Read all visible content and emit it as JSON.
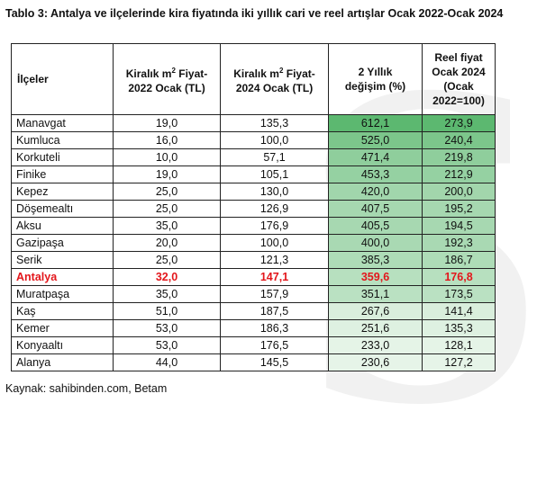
{
  "title": "Tablo 3: Antalya ve ilçelerinde kira fiyatında iki yıllık cari ve reel artışlar Ocak 2022-Ocak 2024",
  "headers": [
    "İlçeler",
    "Kiralık m² Fiyat-2022 Ocak (TL)",
    "Kiralık m² Fiyat-2024 Ocak (TL)",
    "2 Yıllık değişim (%)",
    "Reel fiyat Ocak 2024 (Ocak 2022=100)"
  ],
  "rows": [
    {
      "district": "Manavgat",
      "p2022": "19,0",
      "p2024": "135,3",
      "change": "612,1",
      "real": "273,9"
    },
    {
      "district": "Kumluca",
      "p2022": "16,0",
      "p2024": "100,0",
      "change": "525,0",
      "real": "240,4"
    },
    {
      "district": "Korkuteli",
      "p2022": "10,0",
      "p2024": "57,1",
      "change": "471,4",
      "real": "219,8"
    },
    {
      "district": "Finike",
      "p2022": "19,0",
      "p2024": "105,1",
      "change": "453,3",
      "real": "212,9"
    },
    {
      "district": "Kepez",
      "p2022": "25,0",
      "p2024": "130,0",
      "change": "420,0",
      "real": "200,0"
    },
    {
      "district": "Döşemealtı",
      "p2022": "25,0",
      "p2024": "126,9",
      "change": "407,5",
      "real": "195,2"
    },
    {
      "district": "Aksu",
      "p2022": "35,0",
      "p2024": "176,9",
      "change": "405,5",
      "real": "194,5"
    },
    {
      "district": "Gazipaşa",
      "p2022": "20,0",
      "p2024": "100,0",
      "change": "400,0",
      "real": "192,3"
    },
    {
      "district": "Serik",
      "p2022": "25,0",
      "p2024": "121,3",
      "change": "385,3",
      "real": "186,7"
    },
    {
      "district": "Antalya",
      "p2022": "32,0",
      "p2024": "147,1",
      "change": "359,6",
      "real": "176,8",
      "highlight": true
    },
    {
      "district": "Muratpaşa",
      "p2022": "35,0",
      "p2024": "157,9",
      "change": "351,1",
      "real": "173,5"
    },
    {
      "district": "Kaş",
      "p2022": "51,0",
      "p2024": "187,5",
      "change": "267,6",
      "real": "141,4"
    },
    {
      "district": "Kemer",
      "p2022": "53,0",
      "p2024": "186,3",
      "change": "251,6",
      "real": "135,3"
    },
    {
      "district": "Konyaaltı",
      "p2022": "53,0",
      "p2024": "176,5",
      "change": "233,0",
      "real": "128,1"
    },
    {
      "district": "Alanya",
      "p2022": "44,0",
      "p2024": "145,5",
      "change": "230,6",
      "real": "127,2"
    }
  ],
  "source": "Kaynak: sahibinden.com, Betam",
  "colors": {
    "scale_high": "#5cb870",
    "scale_low": "#e6f4e8",
    "highlight_text": "#e3161b"
  }
}
